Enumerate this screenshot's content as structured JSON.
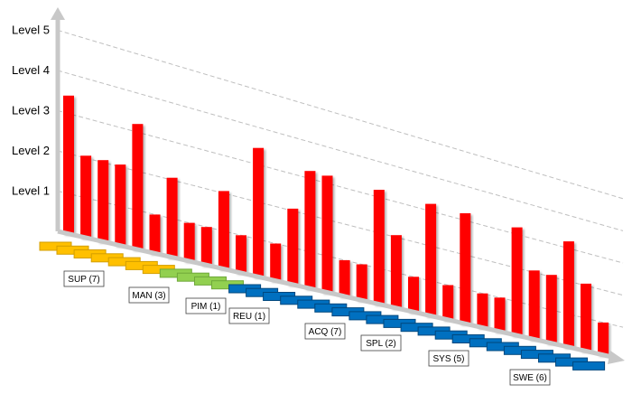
{
  "chart_data": {
    "type": "bar",
    "y_axis_labels": [
      "Level 1",
      "Level 2",
      "Level 3",
      "Level 4",
      "Level 5"
    ],
    "y_range": [
      0,
      5
    ],
    "grid": true,
    "bar_color": "#ff0000",
    "values": [
      3.45,
      2.06,
      2.06,
      2.06,
      3.21,
      1.0,
      2.06,
      1.0,
      1.0,
      2.06,
      1.0,
      3.45,
      1.0,
      2.06,
      3.21,
      3.21,
      1.0,
      1.0,
      3.21,
      2.06,
      1.0,
      3.21,
      1.0,
      3.21,
      1.0,
      1.0,
      3.21,
      2.06,
      2.06,
      3.21,
      2.06,
      1.0
    ],
    "groups": [
      {
        "label": "SUP (7)",
        "count": 7,
        "color": "#ffc000",
        "border": "#d39e00"
      },
      {
        "label": "MAN (3)",
        "count": 3,
        "color": "#92d050",
        "border": "#6fa83a"
      },
      {
        "label": "PIM (1)",
        "count": 1,
        "color": "#92d050",
        "border": "#6fa83a"
      },
      {
        "label": "REU (1)",
        "count": 1,
        "color": "#0070c0",
        "border": "#00477d"
      },
      {
        "label": "ACQ (7)",
        "count": 7,
        "color": "#0070c0",
        "border": "#00477d"
      },
      {
        "label": "SPL (2)",
        "count": 2,
        "color": "#0070c0",
        "border": "#00477d"
      },
      {
        "label": "SYS (5)",
        "count": 5,
        "color": "#0070c0",
        "border": "#00477d"
      },
      {
        "label": "SWE (6)",
        "count": 6,
        "color": "#0070c0",
        "border": "#00477d"
      }
    ]
  }
}
